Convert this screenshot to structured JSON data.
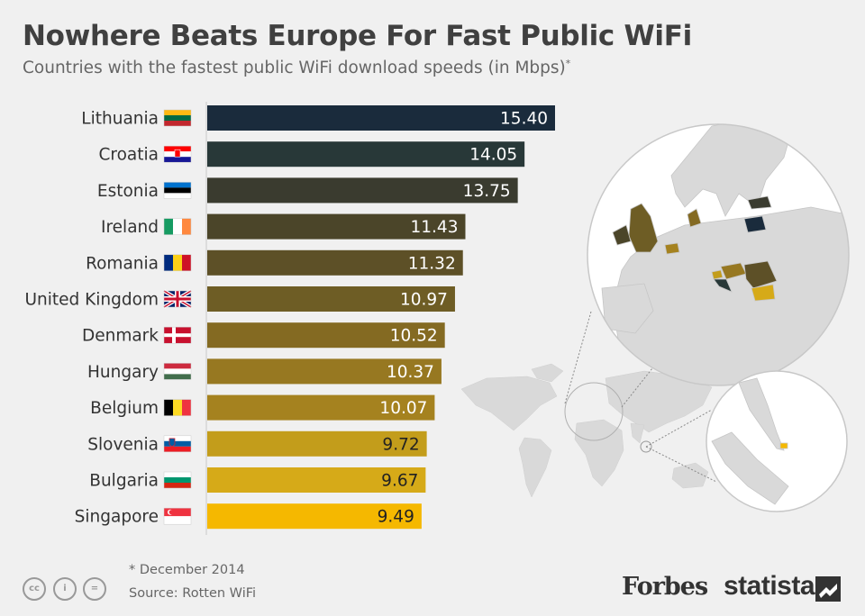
{
  "title": "Nowhere Beats Europe For Fast Public WiFi",
  "subtitle": "Countries with the fastest public WiFi download speeds (in Mbps)",
  "subtitle_mark": "*",
  "footnote": "* December 2014",
  "source": "Source: Rotten WiFi",
  "brands": {
    "forbes": "Forbes",
    "statista": "statista"
  },
  "license_icons": [
    "cc-icon",
    "attribution-icon",
    "no-derivatives-icon"
  ],
  "license_glyphs": [
    "cc",
    "i",
    "="
  ],
  "chart_data": {
    "type": "bar",
    "orientation": "horizontal",
    "unit": "Mbps",
    "xlim": [
      0,
      15.4
    ],
    "categories": [
      "Lithuania",
      "Croatia",
      "Estonia",
      "Ireland",
      "Romania",
      "United Kingdom",
      "Denmark",
      "Hungary",
      "Belgium",
      "Slovenia",
      "Bulgaria",
      "Singapore"
    ],
    "values": [
      15.4,
      14.05,
      13.75,
      11.43,
      11.32,
      10.97,
      10.52,
      10.37,
      10.07,
      9.72,
      9.67,
      9.49
    ],
    "value_labels": [
      "15.40",
      "14.05",
      "13.75",
      "11.43",
      "11.32",
      "10.97",
      "10.52",
      "10.37",
      "10.07",
      "9.72",
      "9.67",
      "9.49"
    ],
    "bar_colors": [
      "#1a2b3c",
      "#283838",
      "#3a3b2f",
      "#4b4529",
      "#5d5027",
      "#6e5d25",
      "#846a22",
      "#977821",
      "#a5821f",
      "#c39d1b",
      "#d6aa18",
      "#f5b800"
    ],
    "label_colors": [
      "#ffffff",
      "#ffffff",
      "#ffffff",
      "#ffffff",
      "#ffffff",
      "#ffffff",
      "#ffffff",
      "#ffffff",
      "#ffffff",
      "#222222",
      "#222222",
      "#222222"
    ],
    "flags": [
      "lithuania-flag",
      "croatia-flag",
      "estonia-flag",
      "ireland-flag",
      "romania-flag",
      "united-kingdom-flag",
      "denmark-flag",
      "hungary-flag",
      "belgium-flag",
      "slovenia-flag",
      "bulgaria-flag",
      "singapore-flag"
    ]
  },
  "map": {
    "europe_inset": "europe-map-inset",
    "singapore_inset": "singapore-map-inset",
    "world": "world-map"
  }
}
